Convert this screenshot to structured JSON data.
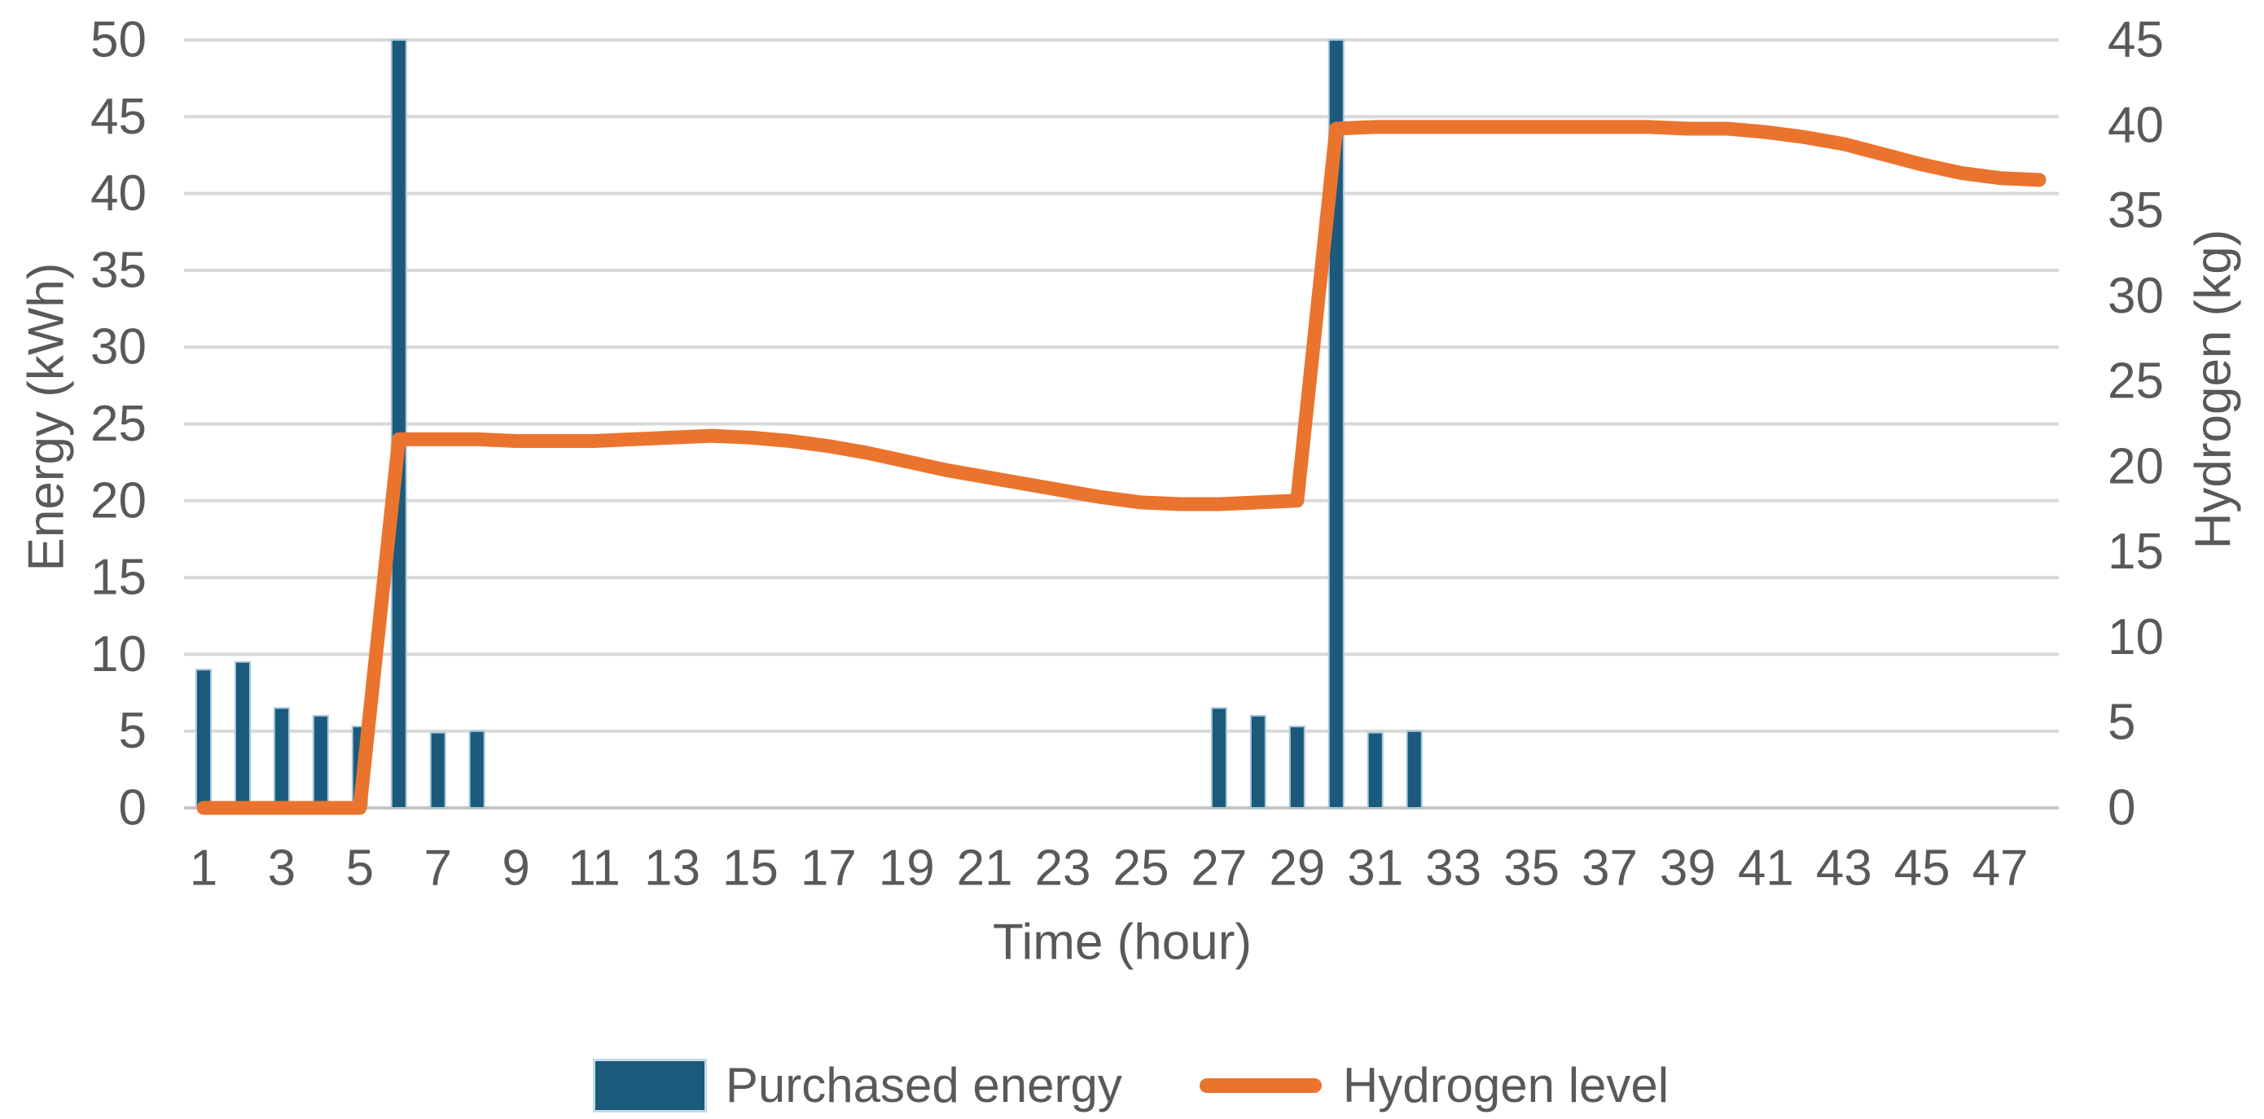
{
  "chart_data": {
    "type": "combo-bar-line",
    "x": [
      1,
      2,
      3,
      4,
      5,
      6,
      7,
      8,
      9,
      10,
      11,
      12,
      13,
      14,
      15,
      16,
      17,
      18,
      19,
      20,
      21,
      22,
      23,
      24,
      25,
      26,
      27,
      28,
      29,
      30,
      31,
      32,
      33,
      34,
      35,
      36,
      37,
      38,
      39,
      40,
      41,
      42,
      43,
      44,
      45,
      46,
      47,
      48
    ],
    "x_axis": {
      "label": "Time (hour)",
      "tick_labels": [
        1,
        3,
        5,
        7,
        9,
        11,
        13,
        15,
        17,
        19,
        21,
        23,
        25,
        27,
        29,
        31,
        33,
        35,
        37,
        39,
        41,
        43,
        45,
        47
      ]
    },
    "y_axis_left": {
      "label": "Energy (kWh)",
      "min": 0,
      "max": 50,
      "step": 5,
      "tick_labels": [
        0,
        5,
        10,
        15,
        20,
        25,
        30,
        35,
        40,
        45,
        50
      ]
    },
    "y_axis_right": {
      "label": "Hydrogen (kg)",
      "min": 0,
      "max": 45,
      "step": 5,
      "tick_labels": [
        0,
        5,
        10,
        15,
        20,
        25,
        30,
        35,
        40,
        45
      ]
    },
    "grid": true,
    "legend_position": "bottom",
    "series": [
      {
        "name": "Purchased energy",
        "type": "bar",
        "axis": "left",
        "color": "#1B5A7D",
        "values": [
          9,
          9.5,
          6.5,
          6,
          5.3,
          50,
          4.9,
          5,
          0,
          0,
          0,
          0,
          0,
          0,
          0,
          0,
          0,
          0,
          0,
          0,
          0,
          0,
          0,
          0,
          0,
          0,
          6.5,
          6,
          5.3,
          50,
          4.9,
          5,
          0,
          0,
          0,
          0,
          0,
          0,
          0,
          0,
          0,
          0,
          0,
          0,
          0,
          0,
          0,
          0
        ]
      },
      {
        "name": "Hydrogen level",
        "type": "line",
        "axis": "right",
        "color": "#EA742E",
        "values": [
          0,
          0,
          0,
          0,
          0,
          21.6,
          21.6,
          21.6,
          21.5,
          21.5,
          21.5,
          21.6,
          21.7,
          21.8,
          21.7,
          21.5,
          21.2,
          20.8,
          20.3,
          19.8,
          19.4,
          19.0,
          18.6,
          18.2,
          17.9,
          17.8,
          17.8,
          17.9,
          18.0,
          39.8,
          39.9,
          39.9,
          39.9,
          39.9,
          39.9,
          39.9,
          39.9,
          39.9,
          39.8,
          39.8,
          39.6,
          39.3,
          38.9,
          38.3,
          37.7,
          37.2,
          36.9,
          36.8
        ]
      }
    ]
  },
  "legend": {
    "items": [
      {
        "label": "Purchased energy",
        "swatch": "bar-swatch",
        "color": "#1B5A7D"
      },
      {
        "label": "Hydrogen level",
        "swatch": "line-swatch",
        "color": "#EA742E"
      }
    ]
  },
  "colors": {
    "bar_fill": "#1B5A7D",
    "bar_edge": "#A5C8D8",
    "line": "#EA742E",
    "gridline": "#D9D9D9",
    "axis_line": "#C6C6C6",
    "text": "#595959",
    "background": "#FFFFFF"
  }
}
